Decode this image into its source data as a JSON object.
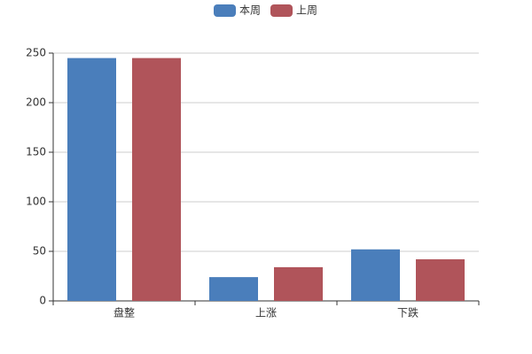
{
  "chart_data": {
    "type": "bar",
    "categories": [
      "盘整",
      "上涨",
      "下跌"
    ],
    "series": [
      {
        "name": "本周",
        "color": "#4a7ebb",
        "values": [
          245,
          24,
          52
        ]
      },
      {
        "name": "上周",
        "color": "#b0545a",
        "values": [
          245,
          34,
          42
        ]
      }
    ],
    "ylim": [
      0,
      250
    ],
    "yticks": [
      0,
      50,
      100,
      150,
      200,
      250
    ],
    "grid": true,
    "legend": "top"
  }
}
